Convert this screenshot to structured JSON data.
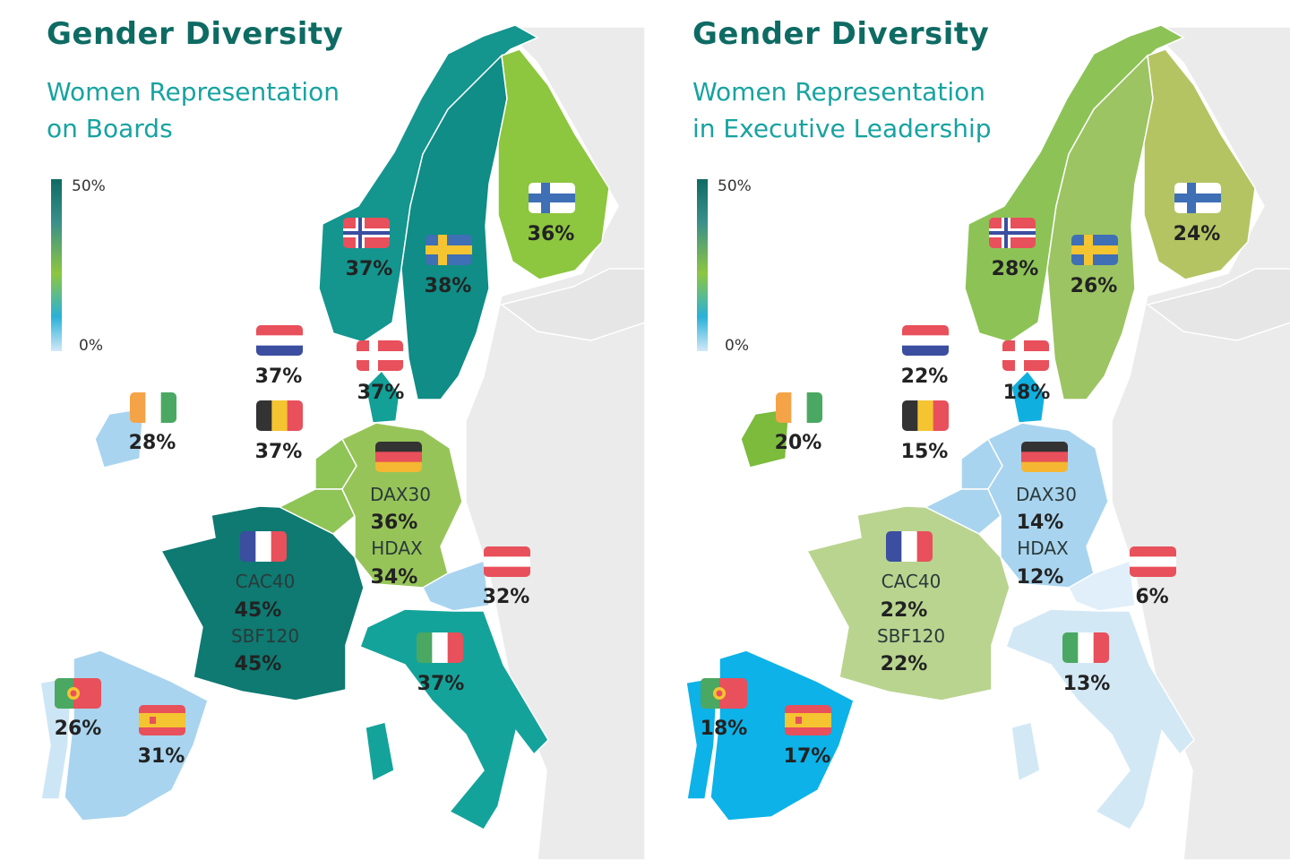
{
  "panels": [
    {
      "title": "Gender Diversity",
      "subtitle_line1": "Women Representation",
      "subtitle_line2": "on Boards",
      "legend": {
        "max": "50%",
        "min": "0%"
      },
      "countries": {
        "norway": {
          "value": "37%",
          "color": "#14958e"
        },
        "sweden": {
          "value": "38%",
          "color": "#0f8d86"
        },
        "finland": {
          "value": "36%",
          "color": "#8dc63f"
        },
        "netherlands": {
          "value": "37%",
          "color": "#8fc456"
        },
        "denmark": {
          "value": "37%",
          "color": "#12a097"
        },
        "ireland": {
          "value": "28%",
          "color": "#a9d4ef"
        },
        "belgium": {
          "value": "37%",
          "color": "#8fc456"
        },
        "germany": {
          "indices": [
            {
              "name": "DAX30",
              "value": "36%"
            },
            {
              "name": "HDAX",
              "value": "34%"
            }
          ],
          "color": "#97c459"
        },
        "france": {
          "indices": [
            {
              "name": "CAC40",
              "value": "45%"
            },
            {
              "name": "SBF120",
              "value": "45%"
            }
          ],
          "color": "#0e7a72"
        },
        "austria": {
          "value": "32%",
          "color": "#a9d4ef"
        },
        "italy": {
          "value": "37%",
          "color": "#14a39a"
        },
        "portugal": {
          "value": "26%",
          "color": "#cde6f6"
        },
        "spain": {
          "value": "31%",
          "color": "#a9d4ef"
        }
      }
    },
    {
      "title": "Gender Diversity",
      "subtitle_line1": "Women Representation",
      "subtitle_line2": "in Executive Leadership",
      "legend": {
        "max": "50%",
        "min": "0%"
      },
      "countries": {
        "norway": {
          "value": "28%",
          "color": "#8dc356"
        },
        "sweden": {
          "value": "26%",
          "color": "#9cc462"
        },
        "finland": {
          "value": "24%",
          "color": "#b5c463"
        },
        "netherlands": {
          "value": "22%",
          "color": "#a9d4ef"
        },
        "denmark": {
          "value": "18%",
          "color": "#0fb0e0"
        },
        "ireland": {
          "value": "20%",
          "color": "#7cbb3c"
        },
        "belgium": {
          "value": "15%",
          "color": "#a9d4ef"
        },
        "germany": {
          "indices": [
            {
              "name": "DAX30",
              "value": "14%"
            },
            {
              "name": "HDAX",
              "value": "12%"
            }
          ],
          "color": "#a9d4ef"
        },
        "france": {
          "indices": [
            {
              "name": "CAC40",
              "value": "22%"
            },
            {
              "name": "SBF120",
              "value": "22%"
            }
          ],
          "color": "#b9d48f"
        },
        "austria": {
          "value": "6%",
          "color": "#e0eff9"
        },
        "italy": {
          "value": "13%",
          "color": "#d3e8f5"
        },
        "portugal": {
          "value": "18%",
          "color": "#0cb2e8"
        },
        "spain": {
          "value": "17%",
          "color": "#0cb2e8"
        }
      }
    }
  ]
}
